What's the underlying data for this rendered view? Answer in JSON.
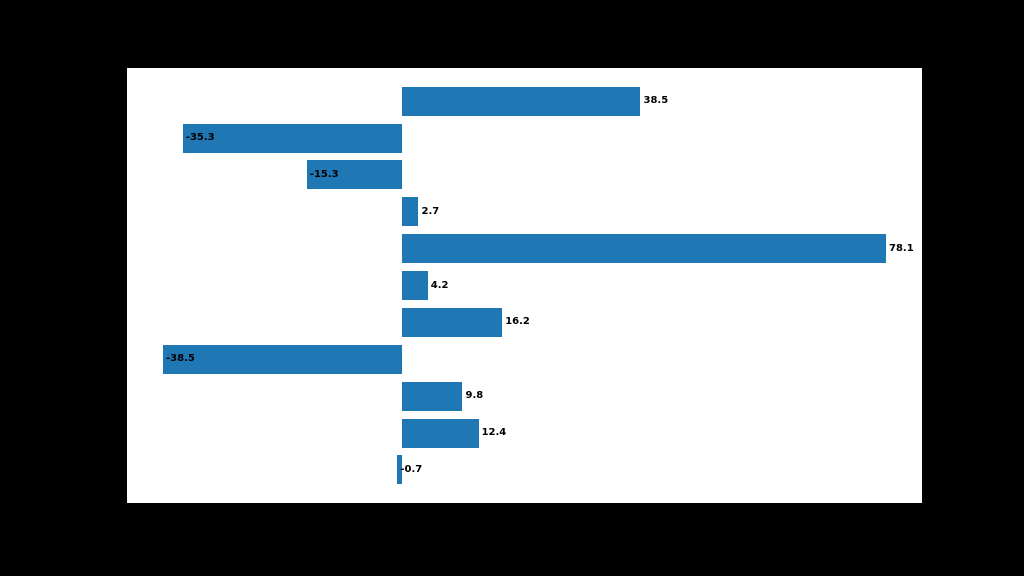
{
  "figure": {
    "background_color": "#000000",
    "plot_background_color": "#ffffff"
  },
  "chart_data": {
    "type": "bar",
    "orientation": "horizontal",
    "title": "",
    "xlabel": "",
    "ylabel": "",
    "values": [
      38.5,
      -35.3,
      -15.3,
      2.7,
      78.1,
      4.2,
      16.2,
      -38.5,
      9.8,
      12.4,
      -0.7
    ],
    "value_labels": [
      "38.5",
      "-35.3",
      "-15.3",
      "2.7",
      "78.1",
      "4.2",
      "16.2",
      "-38.5",
      "9.8",
      "12.4",
      "-0.7"
    ],
    "bar_color": "#1f77b4",
    "value_label_color": "#000000",
    "xlim": [
      -44.3,
      83.9
    ],
    "ylim_slots": 11,
    "grid": false,
    "axes_visible": false,
    "legend": false
  }
}
